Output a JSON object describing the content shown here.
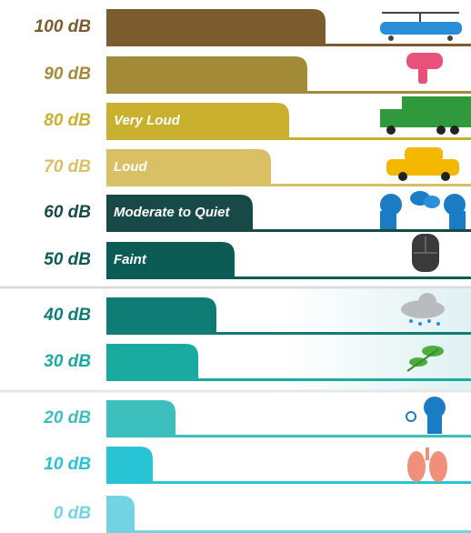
{
  "rows": [
    {
      "label": "100 dB",
      "color": "#7a5c2e"
    },
    {
      "label": "90 dB",
      "color": "#a28a38"
    },
    {
      "label": "80 dB",
      "caption": "Very Loud",
      "color": "#c9b02e"
    },
    {
      "label": "70 dB",
      "caption": "Loud",
      "color": "#d9c064"
    },
    {
      "label": "60 dB",
      "caption": "Moderate to Quiet",
      "color": "#174a47"
    },
    {
      "label": "50 dB",
      "caption": "Faint",
      "color": "#0d5b55"
    },
    {
      "label": "40 dB",
      "color": "#0f7d76"
    },
    {
      "label": "30 dB",
      "color": "#19ab9f"
    },
    {
      "label": "20 dB",
      "color": "#3dbfbe"
    },
    {
      "label": "10 dB",
      "color": "#29c3d6"
    },
    {
      "label": "0 dB",
      "color": "#74d3e3"
    }
  ]
}
